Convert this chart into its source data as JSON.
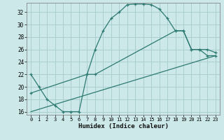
{
  "xlabel": "Humidex (Indice chaleur)",
  "bg_color": "#cce8e8",
  "grid_color": "#aacece",
  "line_color": "#2d7a72",
  "xlim": [
    -0.5,
    23.5
  ],
  "ylim": [
    15.5,
    33.5
  ],
  "xticks": [
    0,
    1,
    2,
    3,
    4,
    5,
    6,
    7,
    8,
    9,
    10,
    11,
    12,
    13,
    14,
    15,
    16,
    17,
    18,
    19,
    20,
    21,
    22,
    23
  ],
  "yticks": [
    16,
    18,
    20,
    22,
    24,
    26,
    28,
    30,
    32
  ],
  "curve1_x": [
    0,
    1,
    2,
    3,
    4,
    5,
    6,
    7,
    8,
    9,
    10,
    11,
    12,
    13,
    14,
    15,
    16,
    17,
    18,
    19,
    20,
    21,
    22,
    23
  ],
  "curve1_y": [
    22,
    20,
    18,
    17,
    16,
    16,
    16,
    22,
    26,
    29,
    31,
    32,
    33.2,
    33.3,
    33.3,
    33.2,
    32.5,
    31,
    29,
    29,
    26,
    26,
    25,
    25
  ],
  "curve2_x": [
    0,
    7,
    8,
    18,
    19,
    20,
    21,
    22,
    23
  ],
  "curve2_y": [
    19,
    22,
    22,
    29,
    29,
    26,
    26,
    26,
    25.5
  ],
  "curve3_x": [
    0,
    23
  ],
  "curve3_y": [
    16,
    25
  ]
}
